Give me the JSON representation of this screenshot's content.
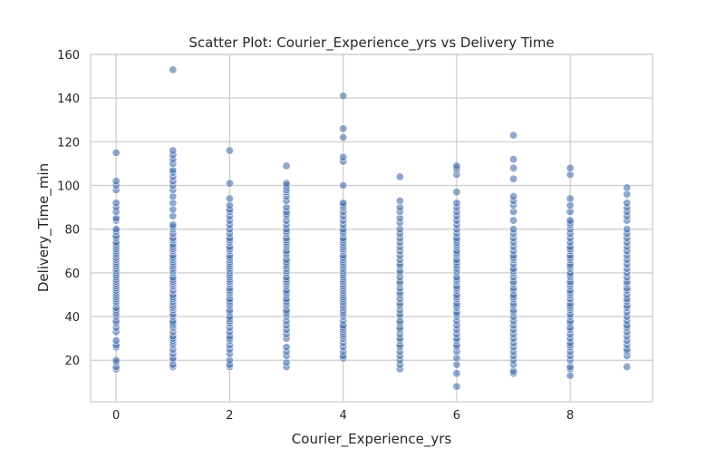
{
  "chart_data": {
    "type": "scatter",
    "title": "Scatter Plot: Courier_Experience_yrs vs Delivery Time",
    "xlabel": "Courier_Experience_yrs",
    "ylabel": "Delivery_Time_min",
    "xlim": [
      -0.45,
      9.45
    ],
    "ylim": [
      1,
      160
    ],
    "xticks": [
      0,
      2,
      4,
      6,
      8
    ],
    "yticks": [
      20,
      40,
      60,
      80,
      100,
      120,
      140,
      160
    ],
    "grid": true,
    "legend": "none",
    "marker_color": "#4c72b0",
    "points": {
      "0": [
        16,
        17,
        19,
        20,
        26,
        27,
        29,
        33,
        35,
        37,
        38,
        40,
        41,
        42,
        43,
        44,
        46,
        47,
        48,
        49,
        50,
        51,
        52,
        53,
        54,
        55,
        56,
        57,
        58,
        59,
        60,
        61,
        62,
        63,
        64,
        65,
        66,
        67,
        68,
        69,
        70,
        71,
        72,
        73,
        74,
        76,
        77,
        79,
        80,
        84,
        85,
        88,
        90,
        92,
        98,
        100,
        102,
        115
      ],
      "1": [
        17,
        18,
        20,
        21,
        23,
        25,
        27,
        28,
        29,
        30,
        31,
        33,
        35,
        36,
        37,
        38,
        40,
        41,
        43,
        44,
        45,
        46,
        47,
        48,
        49,
        50,
        52,
        54,
        55,
        56,
        57,
        58,
        60,
        61,
        62,
        63,
        64,
        65,
        66,
        67,
        68,
        70,
        71,
        72,
        73,
        75,
        76,
        78,
        80,
        81,
        82,
        86,
        89,
        92,
        95,
        98,
        100,
        102,
        104,
        106,
        107,
        110,
        112,
        114,
        116,
        153
      ],
      "2": [
        17,
        18,
        20,
        23,
        25,
        27,
        29,
        30,
        31,
        33,
        35,
        37,
        38,
        39,
        40,
        42,
        43,
        45,
        46,
        47,
        48,
        50,
        51,
        52,
        53,
        55,
        56,
        57,
        58,
        59,
        60,
        61,
        62,
        63,
        64,
        65,
        66,
        67,
        68,
        70,
        71,
        72,
        74,
        75,
        76,
        78,
        80,
        82,
        84,
        86,
        88,
        89,
        91,
        94,
        101,
        116
      ],
      "3": [
        17,
        19,
        22,
        24,
        26,
        30,
        32,
        34,
        36,
        38,
        40,
        41,
        42,
        43,
        45,
        46,
        47,
        48,
        50,
        51,
        52,
        54,
        55,
        56,
        57,
        58,
        60,
        61,
        62,
        63,
        64,
        65,
        66,
        68,
        69,
        70,
        72,
        73,
        74,
        75,
        76,
        78,
        79,
        80,
        82,
        84,
        86,
        87,
        88,
        90,
        93,
        95,
        97,
        98,
        99,
        100,
        101,
        109
      ],
      "4": [
        21,
        22,
        24,
        26,
        28,
        30,
        31,
        32,
        33,
        34,
        35,
        36,
        38,
        40,
        41,
        42,
        43,
        44,
        45,
        46,
        47,
        48,
        49,
        50,
        51,
        52,
        53,
        54,
        55,
        56,
        57,
        58,
        59,
        60,
        61,
        62,
        63,
        64,
        65,
        66,
        67,
        68,
        70,
        71,
        72,
        73,
        74,
        75,
        76,
        78,
        79,
        80,
        82,
        84,
        86,
        88,
        90,
        91,
        92,
        100,
        111,
        113,
        122,
        126,
        141
      ],
      "5": [
        16,
        18,
        20,
        22,
        24,
        26,
        27,
        29,
        30,
        32,
        34,
        35,
        37,
        38,
        40,
        41,
        43,
        45,
        46,
        48,
        50,
        51,
        53,
        55,
        56,
        58,
        60,
        61,
        63,
        64,
        66,
        68,
        70,
        72,
        74,
        76,
        78,
        80,
        83,
        85,
        88,
        90,
        93,
        104
      ],
      "6": [
        8,
        14,
        18,
        21,
        24,
        26,
        27,
        29,
        30,
        32,
        34,
        36,
        38,
        40,
        41,
        42,
        44,
        45,
        46,
        48,
        49,
        50,
        52,
        53,
        54,
        56,
        57,
        58,
        60,
        61,
        62,
        63,
        64,
        65,
        66,
        68,
        69,
        70,
        72,
        73,
        74,
        75,
        76,
        78,
        80,
        82,
        84,
        86,
        88,
        90,
        92,
        97,
        105,
        107,
        108,
        109
      ],
      "7": [
        14,
        15,
        18,
        20,
        22,
        24,
        26,
        28,
        30,
        32,
        34,
        36,
        38,
        40,
        42,
        43,
        45,
        46,
        48,
        49,
        50,
        52,
        53,
        55,
        56,
        58,
        60,
        61,
        62,
        64,
        66,
        67,
        68,
        70,
        72,
        74,
        76,
        78,
        80,
        84,
        88,
        91,
        93,
        95,
        103,
        108,
        112,
        123
      ],
      "8": [
        13,
        16,
        17,
        20,
        22,
        24,
        26,
        27,
        28,
        30,
        32,
        34,
        35,
        37,
        38,
        40,
        41,
        43,
        44,
        45,
        46,
        48,
        50,
        51,
        52,
        54,
        55,
        56,
        58,
        59,
        60,
        62,
        63,
        64,
        66,
        67,
        68,
        70,
        71,
        72,
        74,
        76,
        78,
        80,
        82,
        83,
        84,
        88,
        91,
        94,
        105,
        108
      ],
      "9": [
        17,
        22,
        24,
        25,
        27,
        29,
        31,
        33,
        35,
        36,
        38,
        40,
        42,
        44,
        45,
        47,
        48,
        50,
        52,
        53,
        55,
        56,
        58,
        60,
        62,
        64,
        66,
        68,
        70,
        72,
        74,
        76,
        78,
        80,
        84,
        86,
        88,
        90,
        92,
        96,
        99
      ]
    }
  }
}
